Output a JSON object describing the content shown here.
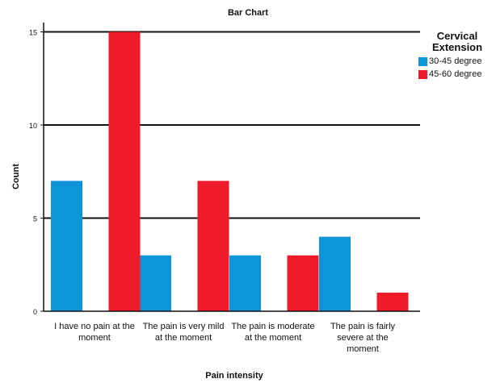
{
  "chart_data": {
    "type": "bar",
    "title": "Bar Chart",
    "xlabel": "Pain intensity",
    "ylabel": "Count",
    "ylim": [
      0,
      15.5
    ],
    "yticks": [
      0,
      5,
      10,
      15
    ],
    "grid": true,
    "legend_position": "top-right",
    "legend_title": "Cervical Extension",
    "categories": [
      "I have no pain at the moment",
      "The pain is very mild at the moment",
      "The pain is moderate at the moment",
      "The pain is fairly severe at the moment"
    ],
    "series": [
      {
        "name": "30-45 degree",
        "color": "#0e95d8",
        "values": [
          7,
          3,
          3,
          4
        ]
      },
      {
        "name": "45-60 degree",
        "color": "#ee1c2a",
        "values": [
          15,
          7,
          3,
          1
        ]
      }
    ]
  }
}
